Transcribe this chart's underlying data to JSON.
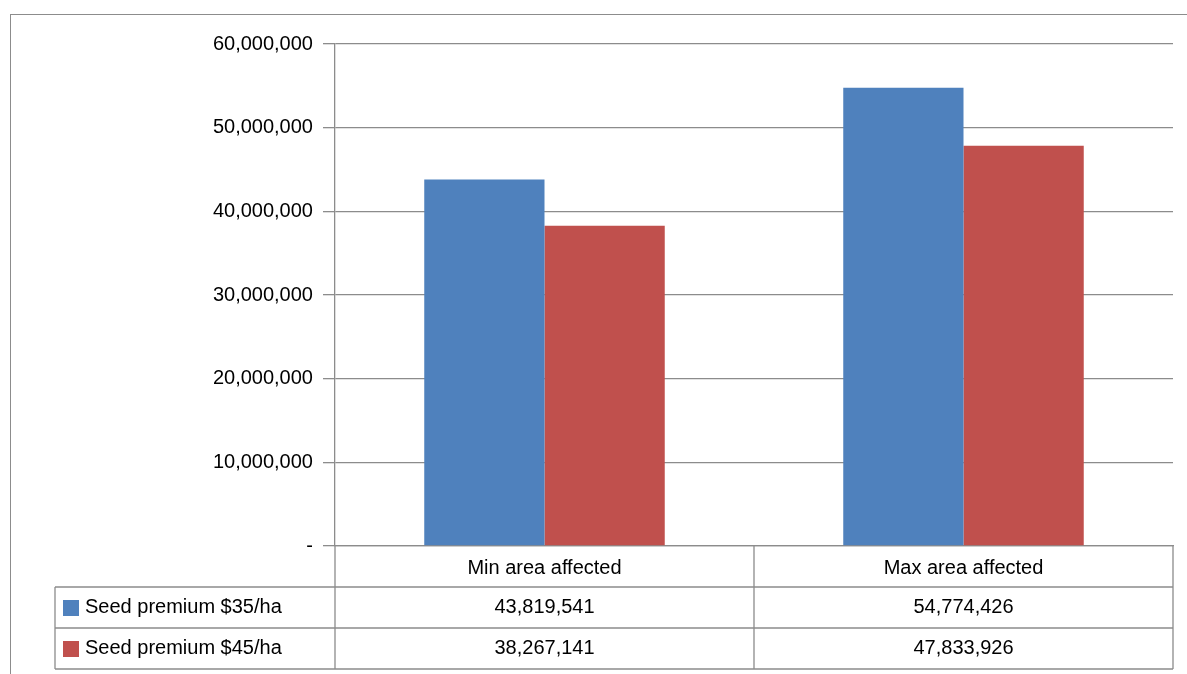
{
  "chart_data": {
    "type": "bar",
    "categories": [
      "Min area affected",
      "Max area affected"
    ],
    "series": [
      {
        "name": "Seed premium $35/ha",
        "color": "#4f81bd",
        "values": [
          43819541,
          54774426
        ],
        "value_labels": [
          "43,819,541",
          "54,774,426"
        ]
      },
      {
        "name": "Seed premium $45/ha",
        "color": "#c0504d",
        "values": [
          38267141,
          47833926
        ],
        "value_labels": [
          "38,267,141",
          "47,833,926"
        ]
      }
    ],
    "ylim": [
      0,
      60000000
    ],
    "yticks": [
      {
        "value": 0,
        "label": "-"
      },
      {
        "value": 10000000,
        "label": "10,000,000"
      },
      {
        "value": 20000000,
        "label": "20,000,000"
      },
      {
        "value": 30000000,
        "label": "30,000,000"
      },
      {
        "value": 40000000,
        "label": "40,000,000"
      },
      {
        "value": 50000000,
        "label": "50,000,000"
      },
      {
        "value": 60000000,
        "label": "60,000,000"
      }
    ],
    "grid": "y",
    "legend": "bottom"
  }
}
